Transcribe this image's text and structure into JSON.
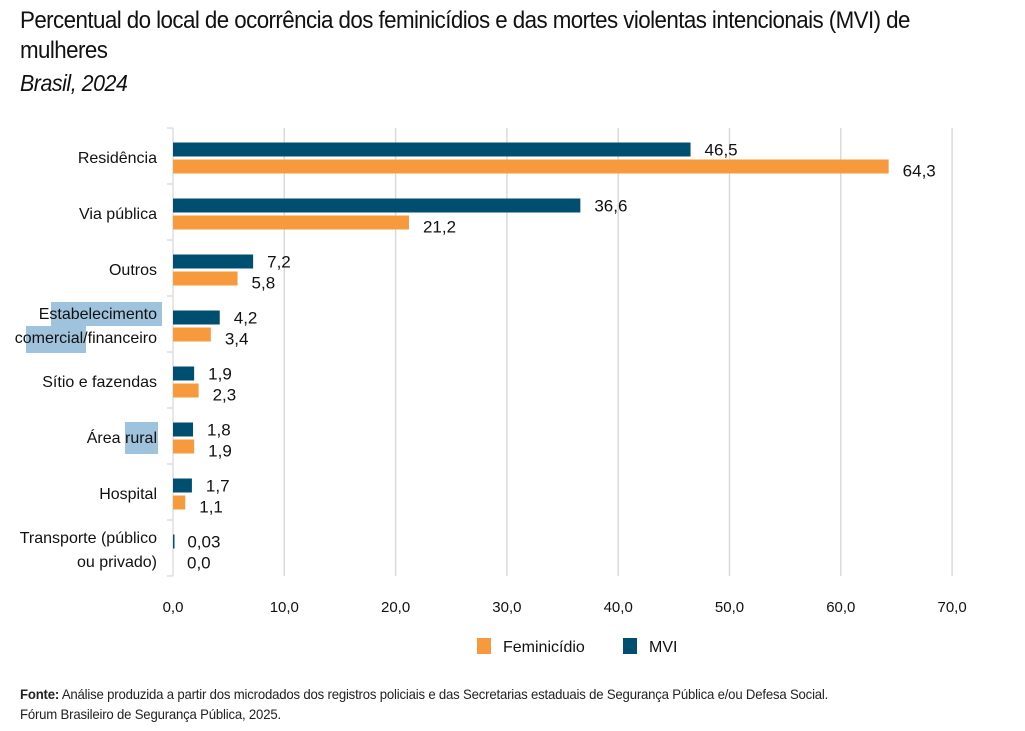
{
  "chart_data": {
    "type": "bar",
    "orientation": "horizontal",
    "title": "Percentual do local de ocorrência dos feminicídios e das mortes violentas intencionais (MVI) de mulheres",
    "subtitle": "Brasil, 2024",
    "categories": [
      "Residência",
      "Via pública",
      "Outros",
      "Estabelecimento comercial/financeiro",
      "Sítio e fazendas",
      "Área rural",
      "Hospital",
      "Transporte (público ou privado)"
    ],
    "category_lines": [
      [
        "Residência"
      ],
      [
        "Via pública"
      ],
      [
        "Outros"
      ],
      [
        "Estabelecimento",
        "comercial/financeiro"
      ],
      [
        "Sítio e fazendas"
      ],
      [
        "Área rural"
      ],
      [
        "Hospital"
      ],
      [
        "Transporte (público",
        "ou privado)"
      ]
    ],
    "series": [
      {
        "name": "MVI",
        "color": "#004f70",
        "values": [
          46.5,
          36.6,
          7.2,
          4.2,
          1.9,
          1.8,
          1.7,
          0.03
        ],
        "labels": [
          "46,5",
          "36,6",
          "7,2",
          "4,2",
          "1,9",
          "1,8",
          "1,7",
          "0,03"
        ]
      },
      {
        "name": "Feminicídio",
        "color": "#f79a3e",
        "values": [
          64.3,
          21.2,
          5.8,
          3.4,
          2.3,
          1.9,
          1.1,
          0.0
        ],
        "labels": [
          "64,3",
          "21,2",
          "5,8",
          "3,4",
          "2,3",
          "1,9",
          "1,1",
          "0,0"
        ]
      }
    ],
    "xlim": [
      0,
      70
    ],
    "xticks": [
      0,
      10,
      20,
      30,
      40,
      50,
      60,
      70
    ],
    "xtick_labels": [
      "0,0",
      "10,0",
      "20,0",
      "30,0",
      "40,0",
      "50,0",
      "60,0",
      "70,0"
    ],
    "xlabel": "",
    "ylabel": "",
    "grid": "vertical",
    "legend": {
      "placement": "bottom-center",
      "items": [
        {
          "name": "Feminicídio",
          "color": "#f79a3e"
        },
        {
          "name": "MVI",
          "color": "#004f70"
        }
      ]
    },
    "highlighted_text": [
      "Estabelecimento",
      "comercial",
      "rural"
    ],
    "highlight_color": "#9fc3dc"
  },
  "header": {
    "title": "Percentual do local de ocorrência dos feminicídios e das mortes violentas intencionais (MVI) de mulheres",
    "subtitle": "Brasil, 2024"
  },
  "footer": {
    "source_label": "Fonte:",
    "source_text": " Análise produzida a partir dos microdados dos registros policiais e das Secretarias estaduais de Segurança Pública e/ou Defesa Social.",
    "source_line2": "Fórum Brasileiro de Segurança Pública, 2025."
  }
}
